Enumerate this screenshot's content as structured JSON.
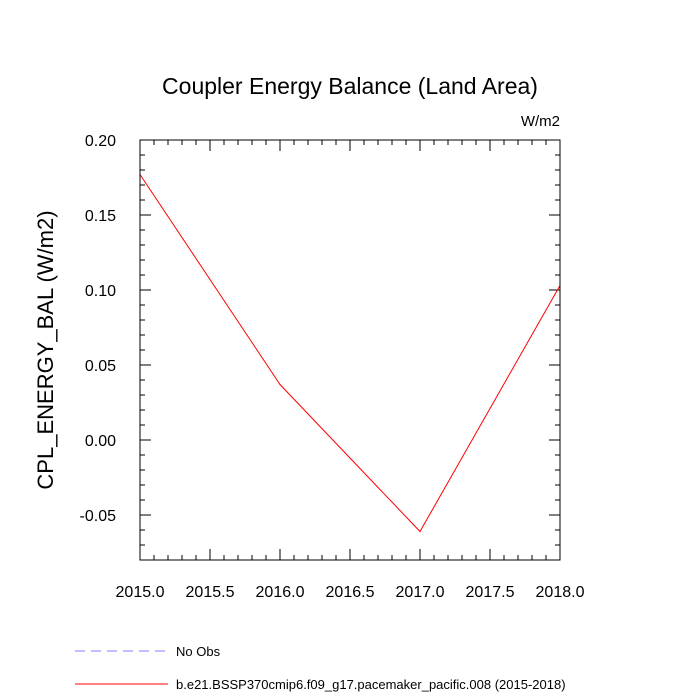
{
  "chart_data": {
    "type": "line",
    "title": "Coupler Energy Balance (Land Area)",
    "units": "W/m2",
    "xlabel": "",
    "ylabel": "CPL_ENERGY_BAL  (W/m2)",
    "xlim": [
      2015.0,
      2018.0
    ],
    "ylim": [
      -0.08,
      0.2
    ],
    "x_ticks": [
      2015.0,
      2015.5,
      2016.0,
      2016.5,
      2017.0,
      2017.5,
      2018.0
    ],
    "x_tick_labels": [
      "2015.0",
      "2015.5",
      "2016.0",
      "2016.5",
      "2017.0",
      "2017.5",
      "2018.0"
    ],
    "y_ticks": [
      0.2,
      0.15,
      0.1,
      0.05,
      0.0,
      -0.05
    ],
    "y_tick_labels": [
      "0.20",
      "0.15",
      "0.10",
      "0.05",
      "0.00",
      "-0.05"
    ],
    "grid": false,
    "legend_position": "bottom",
    "series": [
      {
        "name": "No Obs",
        "color": "#8080ff",
        "dashed": true,
        "x": [],
        "values": []
      },
      {
        "name": "b.e21.BSSP370cmip6.f09_g17.pacemaker_pacific.008 (2015-2018)",
        "color": "#ff0000",
        "dashed": false,
        "x": [
          2015.0,
          2016.0,
          2017.0,
          2018.0
        ],
        "values": [
          0.177,
          0.037,
          -0.061,
          0.103
        ]
      }
    ]
  }
}
